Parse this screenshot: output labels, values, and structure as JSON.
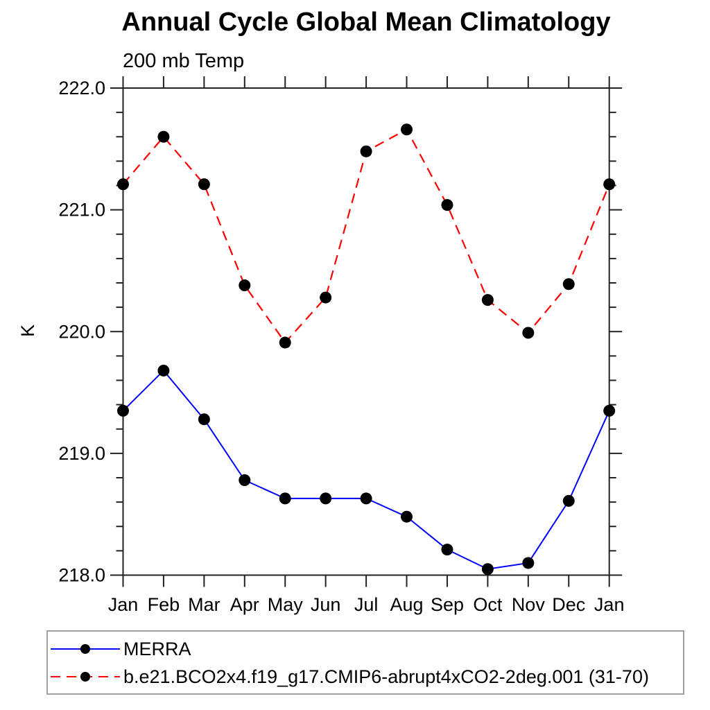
{
  "chart_data": {
    "type": "line",
    "title": "Annual Cycle Global Mean Climatology",
    "subtitle": "200 mb Temp",
    "ylabel": "K",
    "x_categories": [
      "Jan",
      "Feb",
      "Mar",
      "Apr",
      "May",
      "Jun",
      "Jul",
      "Aug",
      "Sep",
      "Oct",
      "Nov",
      "Dec",
      "Jan"
    ],
    "ylim": [
      218.0,
      222.0
    ],
    "ytick_major_values": [
      222.0,
      221.0,
      220.0,
      219.0,
      218.0
    ],
    "ytick_major_labels": [
      "222.0",
      "221.0",
      "220.0",
      "219.0",
      "218.0"
    ],
    "ytick_minor_step": 0.2,
    "grid": false,
    "legend_position": "bottom-left-box",
    "series": [
      {
        "name": "MERRA",
        "color": "#0000ff",
        "line_style": "solid",
        "marker": "filled-black-circle",
        "values": [
          219.35,
          219.68,
          219.28,
          218.78,
          218.63,
          218.63,
          218.63,
          218.48,
          218.21,
          218.05,
          218.1,
          218.61,
          219.35
        ]
      },
      {
        "name": "b.e21.BCO2x4.f19_g17.CMIP6-abrupt4xCO2-2deg.001 (31-70)",
        "color": "#ff0000",
        "line_style": "dashed",
        "marker": "filled-black-circle",
        "values": [
          221.21,
          221.6,
          221.21,
          220.38,
          219.91,
          220.28,
          221.48,
          221.66,
          221.04,
          220.26,
          219.99,
          220.39,
          221.21
        ]
      }
    ]
  }
}
